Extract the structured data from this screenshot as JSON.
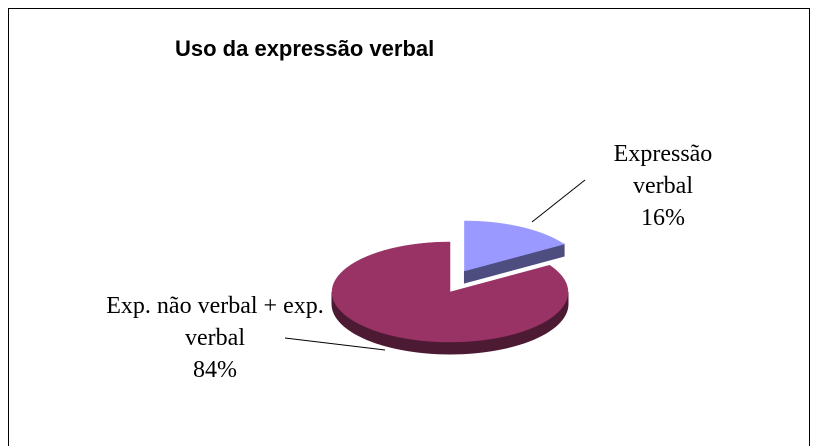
{
  "chart_data": {
    "type": "pie",
    "title": "Uso da expressão verbal",
    "categories": [
      "Expressão verbal",
      "Exp. não verbal + exp. verbal"
    ],
    "values": [
      16,
      84
    ],
    "value_labels": [
      "16%",
      "84%"
    ],
    "colors": [
      "#9999ff",
      "#993366"
    ],
    "side_colors": [
      "#4d4d80",
      "#4d1a33"
    ]
  }
}
